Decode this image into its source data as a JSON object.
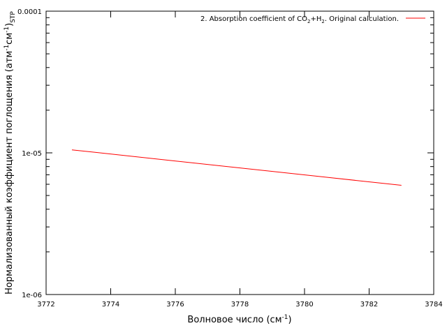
{
  "chart_data": {
    "type": "line",
    "xlabel": {
      "main": "Волновое число (см",
      "sup": "-1",
      "tail": ")"
    },
    "ylabel": {
      "main": "Нормализованный коэффициент поглощения (атм",
      "sup1": "-1",
      "mid": "см",
      "sup2": "-1",
      "close": ")",
      "sub": "STP"
    },
    "xlim": [
      3772,
      3784
    ],
    "ylim": [
      1e-06,
      0.0001
    ],
    "yscale": "log",
    "x_ticks": [
      3772,
      3774,
      3776,
      3778,
      3780,
      3782,
      3784
    ],
    "x_tick_labels": [
      "3772",
      "3774",
      "3776",
      "3778",
      "3780",
      "3782",
      "3784"
    ],
    "y_ticks": [
      1e-06,
      1e-05,
      0.0001
    ],
    "y_tick_labels": [
      "1e-06",
      "1e-05",
      "0.0001"
    ],
    "grid": false,
    "legend_position": "top-right",
    "series": [
      {
        "name": {
          "a": "2. Absorption coefficient of CO",
          "sub1": "2",
          "b": "+H",
          "sub2": "2",
          "c": ". Original calculation."
        },
        "color": "#ff0000",
        "x": [
          3772.8,
          3783.0
        ],
        "y": [
          1.05e-05,
          5.9e-06
        ]
      }
    ]
  }
}
